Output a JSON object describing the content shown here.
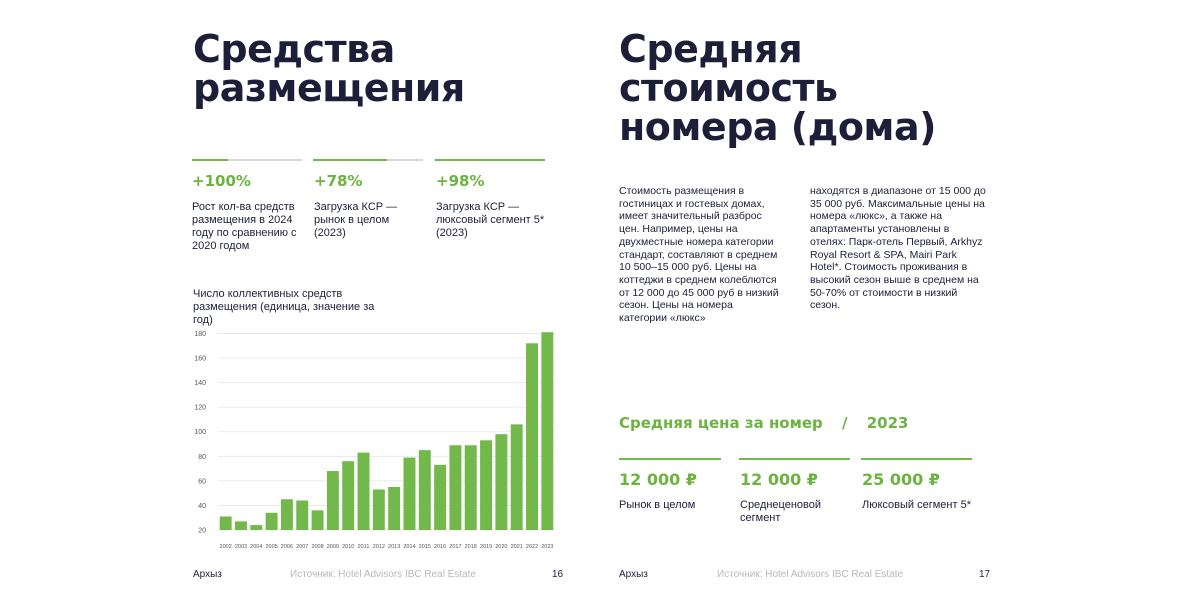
{
  "left": {
    "title": "Средства размещения",
    "stats": [
      {
        "value": "+100%",
        "label": "Рост кол-ва средств размещения в 2024 году по сравнению с 2020 годом"
      },
      {
        "value": "+78%",
        "label": "Загрузка КСР — рынок в целом (2023)"
      },
      {
        "value": "+98%",
        "label": "Загрузка КСР — люксовый сегмент 5* (2023)"
      }
    ],
    "footer": {
      "place": "Архыз",
      "source": "Источник: Hotel Advisors IBC Real Estate",
      "page": "16"
    }
  },
  "chart_data": {
    "type": "bar",
    "title": "Число коллективных средств размещения (единица, значение за год)",
    "categories": [
      "2002",
      "2003",
      "2004",
      "2005",
      "2006",
      "2007",
      "2008",
      "2009",
      "2010",
      "2011",
      "2012",
      "2013",
      "2014",
      "2015",
      "2016",
      "2017",
      "2018",
      "2019",
      "2020",
      "2021",
      "2022",
      "2023"
    ],
    "values": [
      31,
      27,
      24,
      34,
      45,
      44,
      36,
      68,
      76,
      83,
      53,
      55,
      79,
      85,
      73,
      89,
      89,
      93,
      98,
      106,
      172,
      181
    ],
    "color": "#72b84a",
    "ylim": [
      20,
      182
    ],
    "yticks": [
      20,
      40,
      60,
      80,
      100,
      120,
      140,
      160,
      180
    ],
    "grid": true
  },
  "right": {
    "title": "Средняя стоимость номера (дома)",
    "paragraph_1": "Стоимость размещения в гостиницах и гостевых домах, имеет значительный разброс цен. Например, цены на двухместные номера категории стандарт, составляют в среднем 10 500–15 000 руб. Цены на коттеджи в среднем колеблются от 12 000 до 45 000 руб в низкий сезон. Цены на номера категории «люкс»",
    "paragraph_2": "находятся в диапазоне от 15 000 до 35 000 руб. Максимальные цены на номера «люкс», а также на апартаменты установлены в отелях: Парк-отель Первый, Arkhyz Royal Resort & SPA,  Mairi Park Hotel*. Стоимость проживания в высокий сезон выше в среднем на 50-70% от стоимости в низкий сезон.",
    "price_heading": "Средняя цена за номер",
    "price_separator": "/",
    "price_year": "2023",
    "prices": [
      {
        "value": "12 000 ₽",
        "label": "Рынок в целом"
      },
      {
        "value": "12 000 ₽",
        "label": "Среднеценовой сегмент"
      },
      {
        "value": "25 000 ₽",
        "label": "Люксовый сегмент 5*"
      }
    ],
    "footer": {
      "place": "Архыз",
      "source": "Источник: Hotel Advisors IBC Real Estate",
      "page": "17"
    }
  }
}
